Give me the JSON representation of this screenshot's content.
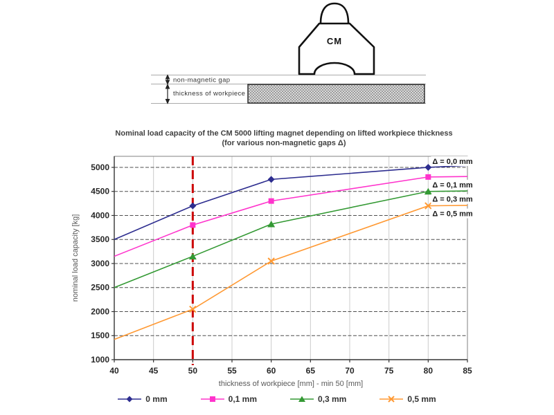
{
  "diagram": {
    "magnet_label": "CM",
    "gap_label": "non-magnetic gap",
    "workpiece_label": "thickness of workpiece"
  },
  "chart_data": {
    "type": "line",
    "title_line1": "Nominal load capacity of the CM 5000 lifting magnet depending on lifted workpiece thickness",
    "title_line2": "(for various non-magnetic gaps Δ)",
    "xlabel": "thickness of workpiece [mm] - min 50 [mm]",
    "ylabel": "nominal load capacity [kg]",
    "xlim": [
      40,
      85
    ],
    "ylim": [
      1000,
      5230
    ],
    "x_ticks": [
      40,
      45,
      50,
      55,
      60,
      65,
      70,
      75,
      80,
      85
    ],
    "y_ticks": [
      1000,
      1500,
      2000,
      2500,
      3000,
      3500,
      4000,
      4500,
      5000
    ],
    "grid": true,
    "legend_position": "bottom",
    "x": [
      40,
      50,
      60,
      80,
      85
    ],
    "marker_x": [
      50,
      60,
      80
    ],
    "series": [
      {
        "name": "0 mm",
        "color": "#2d2d8f",
        "marker": "diamond",
        "values": [
          3500,
          4200,
          4750,
          5000,
          5040
        ],
        "annotation": "Δ = 0,0 mm"
      },
      {
        "name": "0,1 mm",
        "color": "#ff33cc",
        "marker": "square",
        "values": [
          3150,
          3800,
          4300,
          4800,
          4810
        ],
        "annotation": "Δ = 0,1 mm"
      },
      {
        "name": "0,3 mm",
        "color": "#339933",
        "marker": "triangle",
        "values": [
          2500,
          3150,
          3820,
          4500,
          4510
        ],
        "annotation": "Δ = 0,3 mm"
      },
      {
        "name": "0,5 mm",
        "color": "#ff9933",
        "marker": "x",
        "values": [
          1420,
          2050,
          3050,
          4200,
          4210
        ],
        "annotation": "Δ = 0,5 mm"
      }
    ],
    "reference_line": {
      "x": 50,
      "color": "#cc0000"
    },
    "colors": {
      "grid_dark": "#4d4d4d",
      "grid_light": "#cccccc",
      "border": "#808080",
      "axis": "#333333",
      "tick_text": "#262626",
      "axis_title_text": "#595959",
      "annotation_text": "#1a1a1a"
    }
  }
}
